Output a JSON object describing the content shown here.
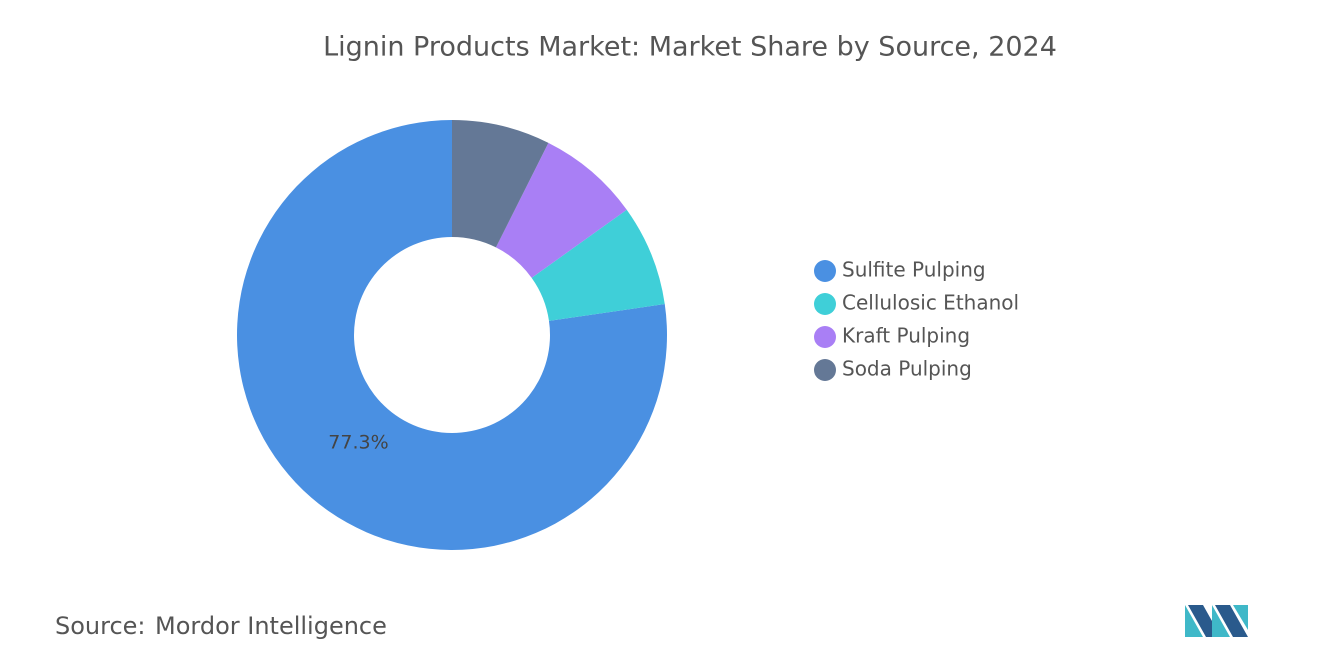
{
  "chart_data": {
    "type": "donut",
    "title": "Lignin Products Market: Market Share by Source, 2024",
    "series": [
      {
        "name": "Sulfite Pulping",
        "color": "#4a90e2",
        "values": [
          77.3
        ],
        "value_labels": [
          "77.3%"
        ]
      },
      {
        "name": "Cellulosic Ethanol",
        "color": "#3fcfd8",
        "values": [
          7.6
        ]
      },
      {
        "name": "Kraft Pulping",
        "color": "#a97ff5",
        "values": [
          7.7
        ]
      },
      {
        "name": "Soda Pulping",
        "color": "#647896",
        "values": [
          7.4
        ]
      }
    ],
    "source_label": "Source:",
    "source": "Mordor Intelligence"
  }
}
